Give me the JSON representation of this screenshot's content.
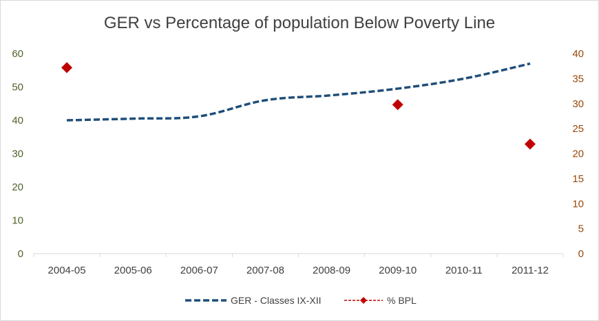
{
  "chart_data": {
    "type": "line",
    "title": "GER vs Percentage of population Below Poverty Line",
    "categories": [
      "2004-05",
      "2005-06",
      "2006-07",
      "2007-08",
      "2008-09",
      "2009-10",
      "2010-11",
      "2011-12"
    ],
    "y_left": {
      "ylim": [
        0,
        60
      ],
      "ticks": [
        "0",
        "10",
        "20",
        "30",
        "40",
        "50",
        "60"
      ],
      "color": "#4f6228"
    },
    "y_right": {
      "ylim": [
        0,
        40
      ],
      "ticks": [
        "0",
        "5",
        "10",
        "15",
        "20",
        "25",
        "30",
        "35",
        "40"
      ],
      "color": "#984807"
    },
    "series": [
      {
        "name": "GER - Classes IX-XII",
        "axis": "left",
        "style": "dashed-line",
        "color": "#1f4e79",
        "values": [
          40,
          40.5,
          41.2,
          46,
          47.5,
          49.5,
          52.5,
          57
        ]
      },
      {
        "name": "% BPL",
        "axis": "right",
        "style": "diamond-markers",
        "color": "#c00000",
        "values": [
          37.2,
          null,
          null,
          null,
          null,
          29.8,
          null,
          21.9
        ]
      }
    ],
    "grid": false,
    "legend": "bottom"
  }
}
